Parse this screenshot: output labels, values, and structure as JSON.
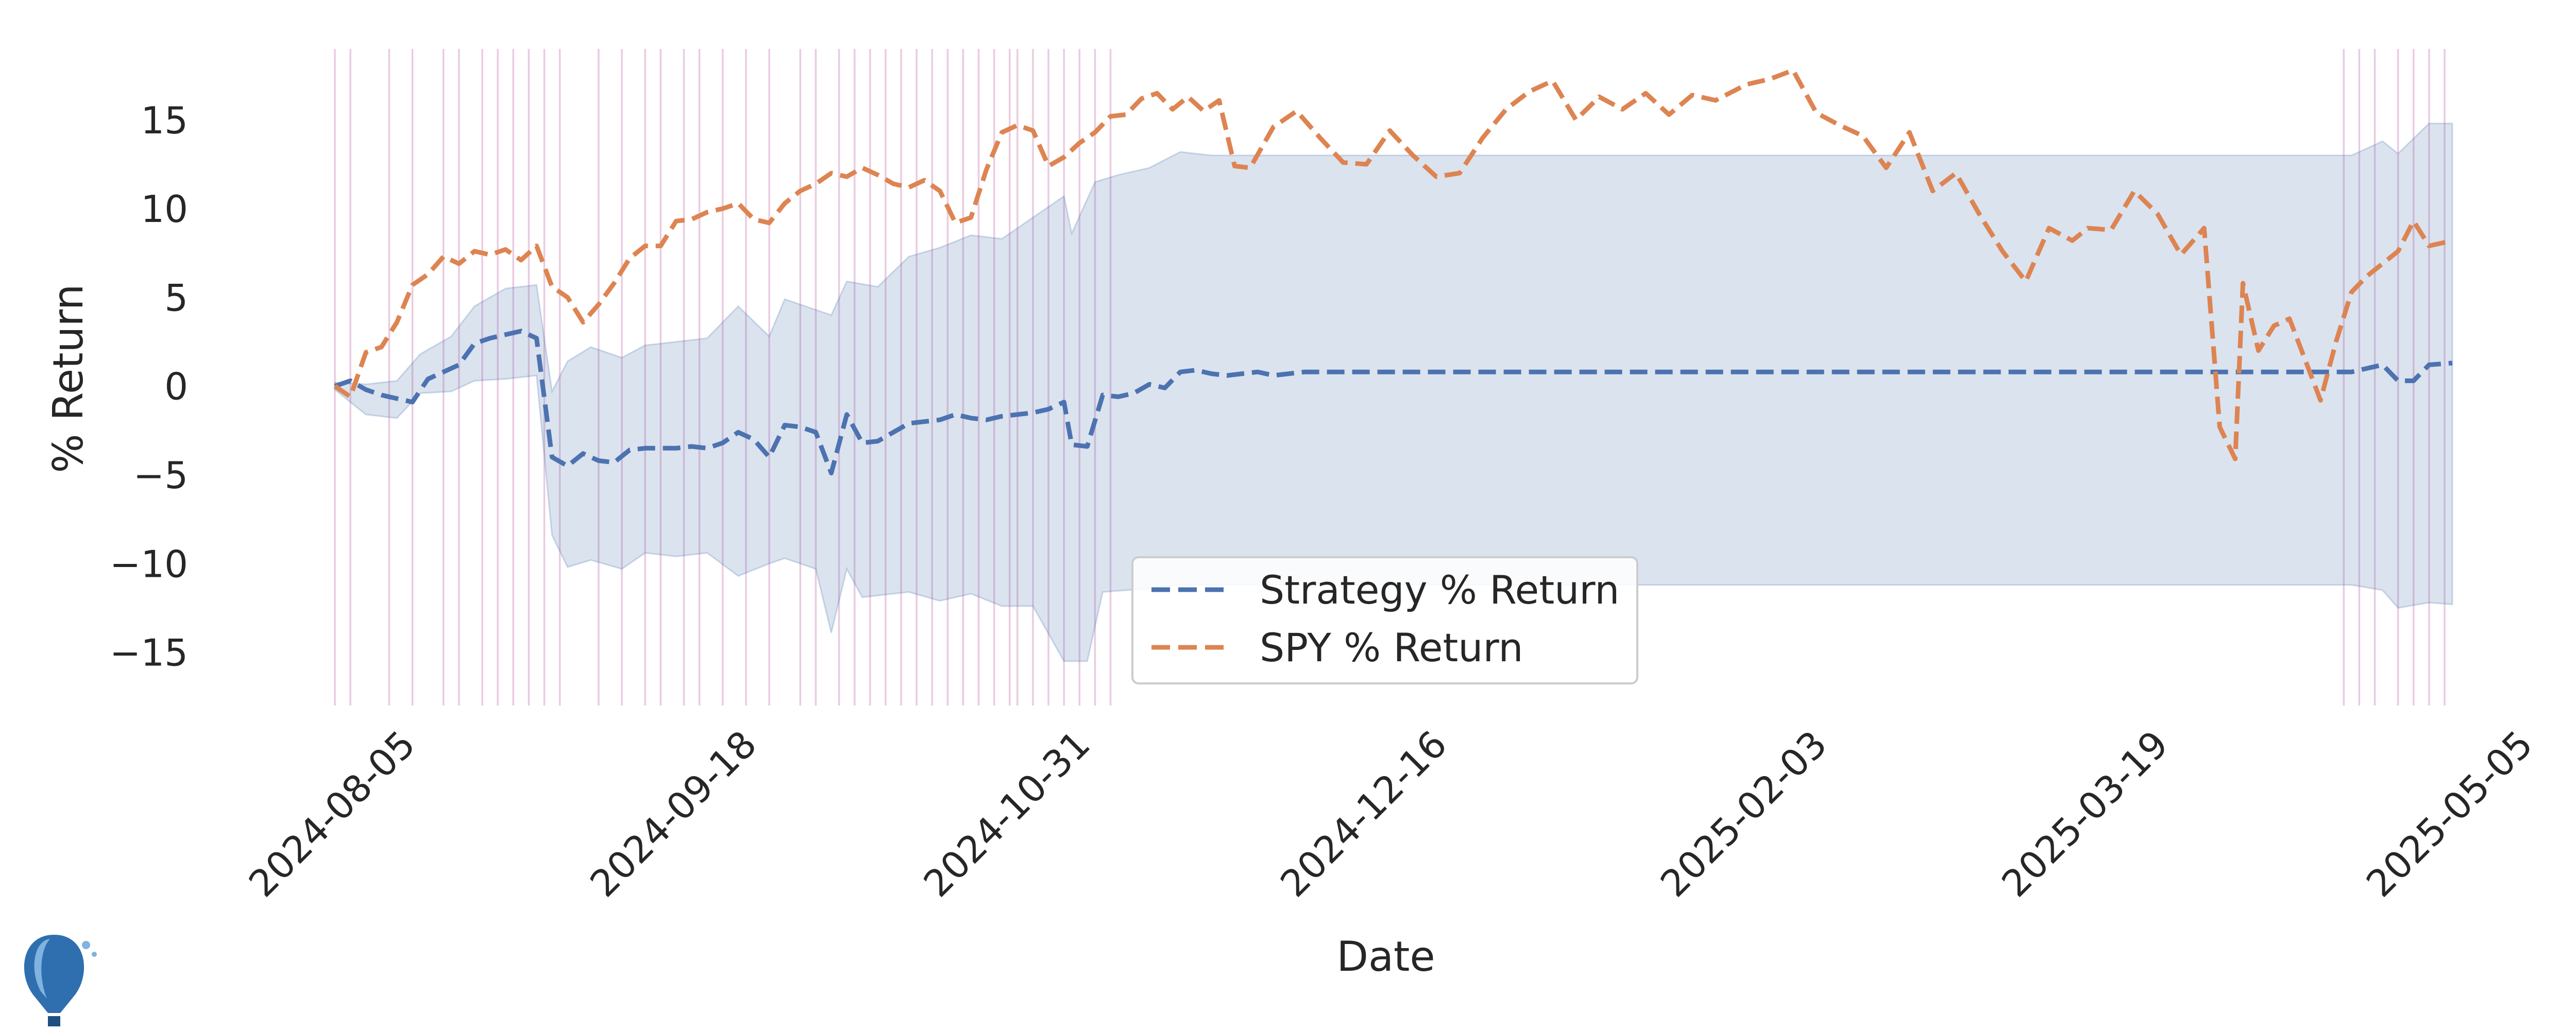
{
  "chart_data": {
    "type": "line",
    "title": "",
    "xlabel": "Date",
    "ylabel": "% Return",
    "xlim": [
      "2024-08-05",
      "2025-05-05"
    ],
    "ylim": [
      -18,
      19
    ],
    "x_ticks": [
      "2024-08-05",
      "2024-09-18",
      "2024-10-31",
      "2024-12-16",
      "2025-02-03",
      "2025-03-19",
      "2025-05-05"
    ],
    "y_ticks": [
      15,
      10,
      5,
      0,
      -5,
      -10,
      -15
    ],
    "grid": false,
    "legend_position": "lower center",
    "colors": {
      "strategy": "#4c72b0",
      "spy": "#dd8452",
      "band": "#4c72b0",
      "event_lines": "#d8a0c8"
    },
    "series": [
      {
        "name": "Strategy % Return",
        "style": "dashed",
        "points": [
          [
            "2024-08-05",
            0
          ],
          [
            "2024-08-07",
            0.3
          ],
          [
            "2024-08-09",
            -0.2
          ],
          [
            "2024-08-11",
            -0.5
          ],
          [
            "2024-08-13",
            -0.7
          ],
          [
            "2024-08-15",
            -0.9
          ],
          [
            "2024-08-17",
            0.4
          ],
          [
            "2024-08-19",
            0.8
          ],
          [
            "2024-08-21",
            1.2
          ],
          [
            "2024-08-23",
            2.4
          ],
          [
            "2024-08-25",
            2.7
          ],
          [
            "2024-08-27",
            2.9
          ],
          [
            "2024-08-29",
            3.1
          ],
          [
            "2024-08-31",
            2.7
          ],
          [
            "2024-09-02",
            -4
          ],
          [
            "2024-09-04",
            -4.5
          ],
          [
            "2024-09-06",
            -3.8
          ],
          [
            "2024-09-08",
            -4.2
          ],
          [
            "2024-09-10",
            -4.3
          ],
          [
            "2024-09-12",
            -3.6
          ],
          [
            "2024-09-14",
            -3.5
          ],
          [
            "2024-09-16",
            -3.5
          ],
          [
            "2024-09-18",
            -3.5
          ],
          [
            "2024-09-20",
            -3.4
          ],
          [
            "2024-09-22",
            -3.5
          ],
          [
            "2024-09-24",
            -3.2
          ],
          [
            "2024-09-26",
            -2.6
          ],
          [
            "2024-09-28",
            -3.0
          ],
          [
            "2024-09-30",
            -4.0
          ],
          [
            "2024-10-02",
            -2.2
          ],
          [
            "2024-10-04",
            -2.3
          ],
          [
            "2024-10-06",
            -2.6
          ],
          [
            "2024-10-08",
            -4.9
          ],
          [
            "2024-10-10",
            -1.6
          ],
          [
            "2024-10-12",
            -3.2
          ],
          [
            "2024-10-14",
            -3.1
          ],
          [
            "2024-10-16",
            -2.6
          ],
          [
            "2024-10-18",
            -2.1
          ],
          [
            "2024-10-20",
            -2.0
          ],
          [
            "2024-10-22",
            -1.9
          ],
          [
            "2024-10-24",
            -1.6
          ],
          [
            "2024-10-26",
            -1.8
          ],
          [
            "2024-10-28",
            -1.9
          ],
          [
            "2024-10-30",
            -1.7
          ],
          [
            "2024-11-01",
            -1.6
          ],
          [
            "2024-11-03",
            -1.5
          ],
          [
            "2024-11-05",
            -1.3
          ],
          [
            "2024-11-07",
            -0.9
          ],
          [
            "2024-11-08",
            -3.3
          ],
          [
            "2024-11-10",
            -3.4
          ],
          [
            "2024-11-12",
            -0.5
          ],
          [
            "2024-11-14",
            -0.6
          ],
          [
            "2024-11-16",
            -0.4
          ],
          [
            "2024-11-18",
            0.1
          ],
          [
            "2024-11-20",
            -0.1
          ],
          [
            "2024-11-22",
            0.8
          ],
          [
            "2024-11-24",
            0.9
          ],
          [
            "2024-11-26",
            0.7
          ],
          [
            "2024-11-28",
            0.6
          ],
          [
            "2024-11-30",
            0.7
          ],
          [
            "2024-12-02",
            0.8
          ],
          [
            "2024-12-04",
            0.6
          ],
          [
            "2024-12-06",
            0.7
          ],
          [
            "2024-12-08",
            0.8
          ],
          [
            "2024-12-10",
            0.8
          ],
          [
            "2024-12-16",
            0.8
          ],
          [
            "2025-01-15",
            0.8
          ],
          [
            "2025-02-03",
            0.8
          ],
          [
            "2025-03-01",
            0.8
          ],
          [
            "2025-03-19",
            0.8
          ],
          [
            "2025-04-05",
            0.8
          ],
          [
            "2025-04-22",
            0.8
          ],
          [
            "2025-04-24",
            1.0
          ],
          [
            "2025-04-26",
            1.2
          ],
          [
            "2025-04-28",
            0.3
          ],
          [
            "2025-04-30",
            0.3
          ],
          [
            "2025-05-02",
            1.2
          ],
          [
            "2025-05-05",
            1.3
          ]
        ]
      },
      {
        "name": "SPY % Return",
        "style": "dashed",
        "points": [
          [
            "2024-08-05",
            0
          ],
          [
            "2024-08-07",
            -0.6
          ],
          [
            "2024-08-09",
            1.9
          ],
          [
            "2024-08-11",
            2.2
          ],
          [
            "2024-08-13",
            3.6
          ],
          [
            "2024-08-15",
            5.7
          ],
          [
            "2024-08-17",
            6.3
          ],
          [
            "2024-08-19",
            7.3
          ],
          [
            "2024-08-21",
            6.9
          ],
          [
            "2024-08-23",
            7.6
          ],
          [
            "2024-08-25",
            7.4
          ],
          [
            "2024-08-27",
            7.7
          ],
          [
            "2024-08-29",
            7.1
          ],
          [
            "2024-08-31",
            7.9
          ],
          [
            "2024-09-02",
            5.6
          ],
          [
            "2024-09-04",
            5.0
          ],
          [
            "2024-09-06",
            3.6
          ],
          [
            "2024-09-08",
            4.6
          ],
          [
            "2024-09-10",
            5.8
          ],
          [
            "2024-09-12",
            7.2
          ],
          [
            "2024-09-14",
            7.9
          ],
          [
            "2024-09-16",
            7.9
          ],
          [
            "2024-09-18",
            9.3
          ],
          [
            "2024-09-20",
            9.4
          ],
          [
            "2024-09-22",
            9.8
          ],
          [
            "2024-09-24",
            10.0
          ],
          [
            "2024-09-26",
            10.3
          ],
          [
            "2024-09-28",
            9.4
          ],
          [
            "2024-09-30",
            9.2
          ],
          [
            "2024-10-02",
            10.3
          ],
          [
            "2024-10-04",
            11.0
          ],
          [
            "2024-10-06",
            11.4
          ],
          [
            "2024-10-08",
            12.0
          ],
          [
            "2024-10-10",
            11.8
          ],
          [
            "2024-10-12",
            12.3
          ],
          [
            "2024-10-14",
            11.9
          ],
          [
            "2024-10-16",
            11.4
          ],
          [
            "2024-10-18",
            11.2
          ],
          [
            "2024-10-20",
            11.6
          ],
          [
            "2024-10-22",
            11.0
          ],
          [
            "2024-10-24",
            9.2
          ],
          [
            "2024-10-26",
            9.5
          ],
          [
            "2024-10-28",
            12.2
          ],
          [
            "2024-10-30",
            14.3
          ],
          [
            "2024-11-01",
            14.7
          ],
          [
            "2024-11-03",
            14.4
          ],
          [
            "2024-11-05",
            12.4
          ],
          [
            "2024-11-07",
            12.9
          ],
          [
            "2024-11-09",
            13.7
          ],
          [
            "2024-11-11",
            14.3
          ],
          [
            "2024-11-13",
            15.2
          ],
          [
            "2024-11-15",
            15.3
          ],
          [
            "2024-11-17",
            16.2
          ],
          [
            "2024-11-19",
            16.5
          ],
          [
            "2024-11-21",
            15.6
          ],
          [
            "2024-11-23",
            16.3
          ],
          [
            "2024-11-25",
            15.5
          ],
          [
            "2024-11-27",
            16.1
          ],
          [
            "2024-11-29",
            12.4
          ],
          [
            "2024-12-01",
            12.3
          ],
          [
            "2024-12-04",
            14.6
          ],
          [
            "2024-12-07",
            15.5
          ],
          [
            "2024-12-10",
            14.0
          ],
          [
            "2024-12-13",
            12.6
          ],
          [
            "2024-12-16",
            12.5
          ],
          [
            "2024-12-19",
            14.4
          ],
          [
            "2024-12-22",
            13.0
          ],
          [
            "2024-12-25",
            11.8
          ],
          [
            "2024-12-28",
            12.0
          ],
          [
            "2024-12-31",
            14.0
          ],
          [
            "2025-01-03",
            15.6
          ],
          [
            "2025-01-06",
            16.6
          ],
          [
            "2025-01-09",
            17.2
          ],
          [
            "2025-01-12",
            15.0
          ],
          [
            "2025-01-15",
            16.3
          ],
          [
            "2025-01-18",
            15.6
          ],
          [
            "2025-01-21",
            16.5
          ],
          [
            "2025-01-24",
            15.3
          ],
          [
            "2025-01-27",
            16.4
          ],
          [
            "2025-01-30",
            16.1
          ],
          [
            "2025-02-03",
            17.0
          ],
          [
            "2025-02-06",
            17.3
          ],
          [
            "2025-02-09",
            17.8
          ],
          [
            "2025-02-12",
            15.4
          ],
          [
            "2025-02-15",
            14.7
          ],
          [
            "2025-02-18",
            14.1
          ],
          [
            "2025-02-21",
            12.3
          ],
          [
            "2025-02-24",
            14.3
          ],
          [
            "2025-02-27",
            11.0
          ],
          [
            "2025-03-02",
            12.0
          ],
          [
            "2025-03-05",
            9.7
          ],
          [
            "2025-03-08",
            7.6
          ],
          [
            "2025-03-11",
            5.9
          ],
          [
            "2025-03-14",
            8.9
          ],
          [
            "2025-03-17",
            8.2
          ],
          [
            "2025-03-19",
            8.9
          ],
          [
            "2025-03-22",
            8.8
          ],
          [
            "2025-03-25",
            11.0
          ],
          [
            "2025-03-28",
            9.7
          ],
          [
            "2025-03-31",
            7.4
          ],
          [
            "2025-04-03",
            8.9
          ],
          [
            "2025-04-05",
            -2.3
          ],
          [
            "2025-04-07",
            -4.1
          ],
          [
            "2025-04-08",
            5.8
          ],
          [
            "2025-04-10",
            2.0
          ],
          [
            "2025-04-12",
            3.4
          ],
          [
            "2025-04-14",
            3.8
          ],
          [
            "2025-04-16",
            1.5
          ],
          [
            "2025-04-18",
            -0.8
          ],
          [
            "2025-04-20",
            2.5
          ],
          [
            "2025-04-22",
            5.3
          ],
          [
            "2025-04-24",
            6.2
          ],
          [
            "2025-04-26",
            6.9
          ],
          [
            "2025-04-28",
            7.6
          ],
          [
            "2025-04-30",
            9.3
          ],
          [
            "2025-05-02",
            7.9
          ],
          [
            "2025-05-05",
            8.2
          ]
        ]
      }
    ],
    "band": {
      "series": "Strategy % Return",
      "upper": [
        [
          "2024-08-05",
          0.2
        ],
        [
          "2024-08-09",
          0.1
        ],
        [
          "2024-08-13",
          0.3
        ],
        [
          "2024-08-16",
          1.8
        ],
        [
          "2024-08-20",
          2.8
        ],
        [
          "2024-08-23",
          4.5
        ],
        [
          "2024-08-27",
          5.5
        ],
        [
          "2024-08-31",
          5.7
        ],
        [
          "2024-09-02",
          -0.3
        ],
        [
          "2024-09-04",
          1.4
        ],
        [
          "2024-09-07",
          2.2
        ],
        [
          "2024-09-11",
          1.6
        ],
        [
          "2024-09-14",
          2.3
        ],
        [
          "2024-09-18",
          2.5
        ],
        [
          "2024-09-22",
          2.7
        ],
        [
          "2024-09-26",
          4.5
        ],
        [
          "2024-09-30",
          2.8
        ],
        [
          "2024-10-02",
          4.9
        ],
        [
          "2024-10-08",
          4.0
        ],
        [
          "2024-10-10",
          5.9
        ],
        [
          "2024-10-14",
          5.6
        ],
        [
          "2024-10-18",
          7.3
        ],
        [
          "2024-10-22",
          7.8
        ],
        [
          "2024-10-26",
          8.5
        ],
        [
          "2024-10-30",
          8.3
        ],
        [
          "2024-11-03",
          9.5
        ],
        [
          "2024-11-07",
          10.7
        ],
        [
          "2024-11-08",
          8.6
        ],
        [
          "2024-11-11",
          11.5
        ],
        [
          "2024-11-14",
          11.9
        ],
        [
          "2024-11-18",
          12.3
        ],
        [
          "2024-11-22",
          13.2
        ],
        [
          "2024-11-26",
          13.0
        ],
        [
          "2024-12-04",
          13.0
        ],
        [
          "2024-12-10",
          13.0
        ],
        [
          "2025-04-22",
          13.0
        ],
        [
          "2025-04-26",
          13.8
        ],
        [
          "2025-04-28",
          13.1
        ],
        [
          "2025-05-02",
          14.8
        ],
        [
          "2025-05-05",
          14.8
        ]
      ],
      "lower": [
        [
          "2024-08-05",
          -0.2
        ],
        [
          "2024-08-09",
          -1.6
        ],
        [
          "2024-08-13",
          -1.8
        ],
        [
          "2024-08-16",
          -0.4
        ],
        [
          "2024-08-20",
          -0.3
        ],
        [
          "2024-08-23",
          0.3
        ],
        [
          "2024-08-27",
          0.4
        ],
        [
          "2024-08-31",
          0.6
        ],
        [
          "2024-09-02",
          -8.4
        ],
        [
          "2024-09-04",
          -10.2
        ],
        [
          "2024-09-07",
          -9.8
        ],
        [
          "2024-09-11",
          -10.3
        ],
        [
          "2024-09-14",
          -9.4
        ],
        [
          "2024-09-18",
          -9.6
        ],
        [
          "2024-09-22",
          -9.4
        ],
        [
          "2024-09-26",
          -10.7
        ],
        [
          "2024-09-30",
          -10.0
        ],
        [
          "2024-10-02",
          -9.7
        ],
        [
          "2024-10-06",
          -10.3
        ],
        [
          "2024-10-08",
          -13.9
        ],
        [
          "2024-10-10",
          -10.3
        ],
        [
          "2024-10-12",
          -11.9
        ],
        [
          "2024-10-18",
          -11.6
        ],
        [
          "2024-10-22",
          -12.1
        ],
        [
          "2024-10-26",
          -11.7
        ],
        [
          "2024-10-30",
          -12.4
        ],
        [
          "2024-11-03",
          -12.4
        ],
        [
          "2024-11-07",
          -15.5
        ],
        [
          "2024-11-10",
          -15.5
        ],
        [
          "2024-11-12",
          -11.6
        ],
        [
          "2024-11-18",
          -11.4
        ],
        [
          "2024-11-22",
          -11.2
        ],
        [
          "2024-12-04",
          -11.2
        ],
        [
          "2025-04-22",
          -11.2
        ],
        [
          "2025-04-26",
          -11.5
        ],
        [
          "2025-04-28",
          -12.5
        ],
        [
          "2025-05-02",
          -12.2
        ],
        [
          "2025-05-05",
          -12.3
        ]
      ]
    },
    "event_lines": [
      "2024-08-05",
      "2024-08-07",
      "2024-08-12",
      "2024-08-15",
      "2024-08-19",
      "2024-08-21",
      "2024-08-24",
      "2024-08-26",
      "2024-08-28",
      "2024-08-30",
      "2024-09-01",
      "2024-09-03",
      "2024-09-08",
      "2024-09-11",
      "2024-09-14",
      "2024-09-16",
      "2024-09-19",
      "2024-09-21",
      "2024-09-24",
      "2024-09-27",
      "2024-09-30",
      "2024-10-04",
      "2024-10-06",
      "2024-10-09",
      "2024-10-11",
      "2024-10-13",
      "2024-10-15",
      "2024-10-17",
      "2024-10-19",
      "2024-10-21",
      "2024-10-23",
      "2024-10-25",
      "2024-10-27",
      "2024-10-29",
      "2024-10-31",
      "2024-11-01",
      "2024-11-03",
      "2024-11-05",
      "2024-11-07",
      "2024-11-09",
      "2024-11-11",
      "2024-11-13",
      "2025-04-21",
      "2025-04-23",
      "2025-04-25",
      "2025-04-28",
      "2025-04-30",
      "2025-05-02",
      "2025-05-04"
    ]
  }
}
